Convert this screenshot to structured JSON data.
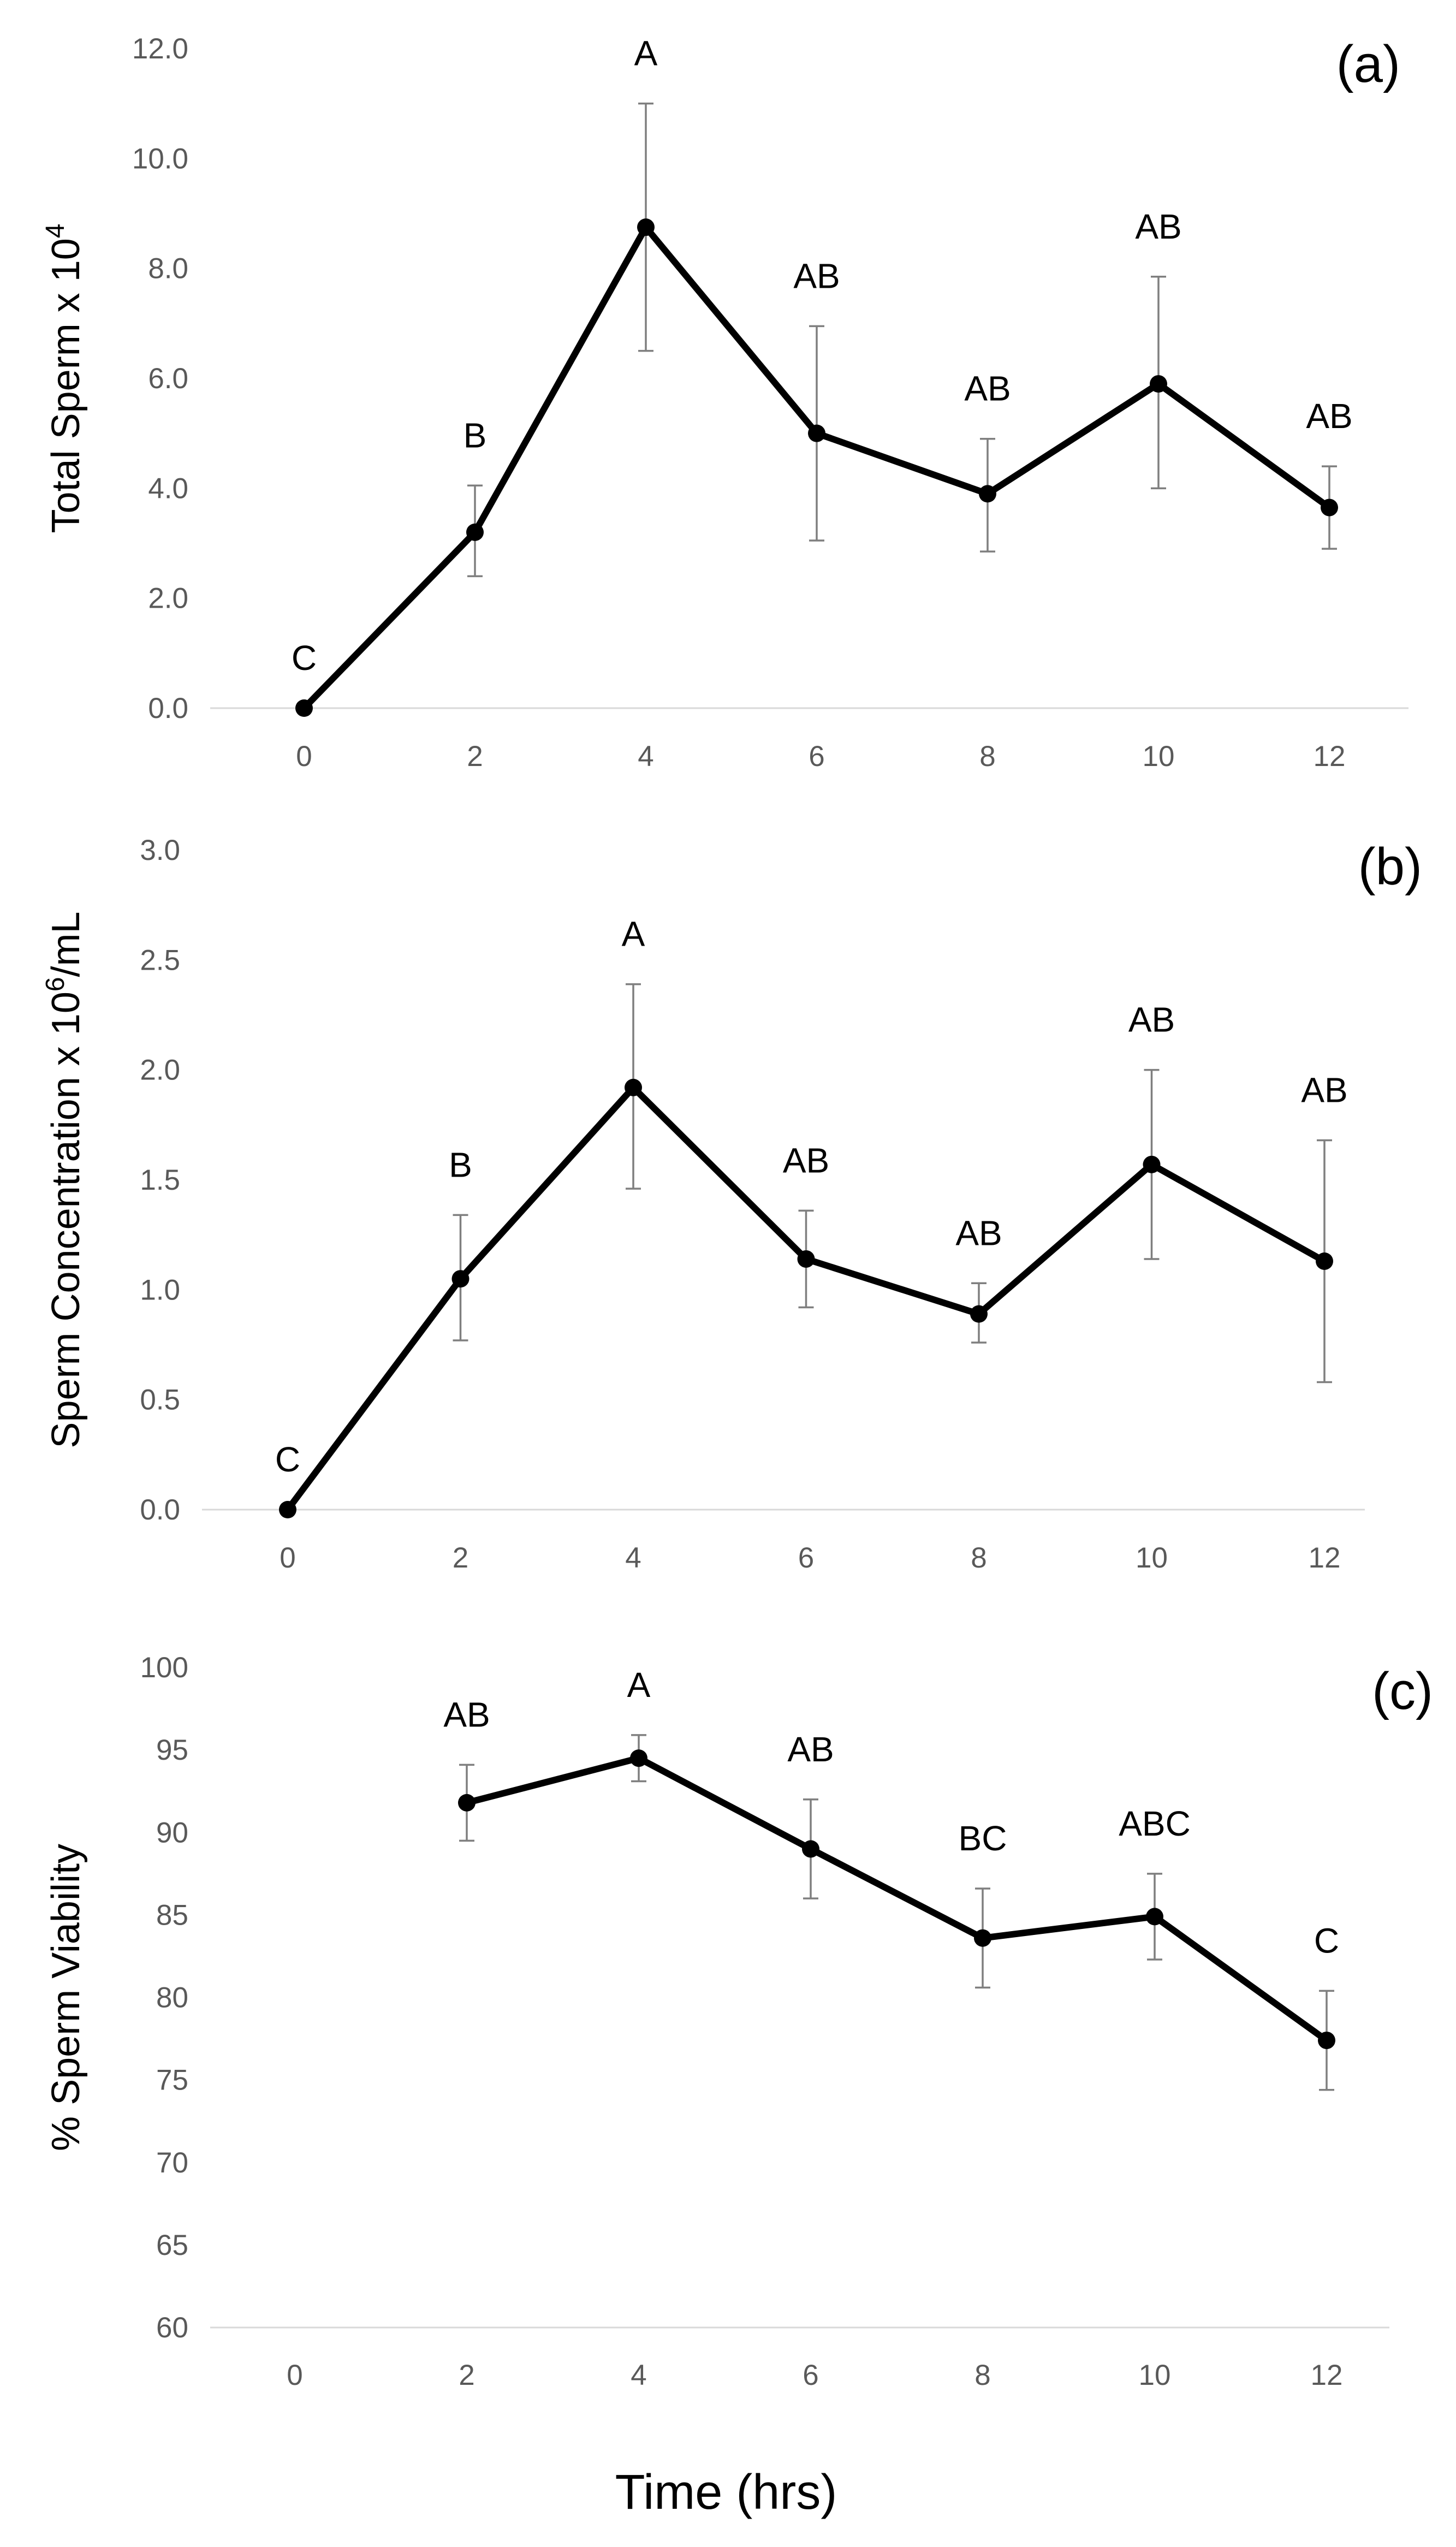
{
  "figure": {
    "xlabel": "Time (hrs)"
  },
  "chart_data": [
    {
      "type": "line",
      "panel_label": "(a)",
      "ylabel_main": "Total Sperm x 10",
      "ylabel_sup": "4",
      "ylim": [
        0,
        12
      ],
      "yticks": [
        "0.0",
        "2.0",
        "4.0",
        "6.0",
        "8.0",
        "10.0",
        "12.0"
      ],
      "x": [
        0,
        2,
        4,
        6,
        8,
        10,
        12
      ],
      "series": [
        {
          "name": "Total Sperm",
          "values": [
            0.0,
            3.2,
            8.75,
            5.0,
            3.9,
            5.9,
            3.65
          ],
          "error_low": [
            0,
            2.4,
            6.5,
            3.05,
            2.85,
            4.0,
            2.9
          ],
          "error_high": [
            0,
            4.05,
            11.0,
            6.95,
            4.9,
            7.85,
            4.4
          ],
          "letters": [
            "C",
            "B",
            "A",
            "AB",
            "AB",
            "AB",
            "AB"
          ]
        }
      ]
    },
    {
      "type": "line",
      "panel_label": "(b)",
      "ylabel_main": "Sperm Concentration x 10",
      "ylabel_sup": "6",
      "ylabel_tail": "/mL",
      "ylim": [
        0,
        3
      ],
      "yticks": [
        "0.0",
        "0.5",
        "1.0",
        "1.5",
        "2.0",
        "2.5",
        "3.0"
      ],
      "x": [
        0,
        2,
        4,
        6,
        8,
        10,
        12
      ],
      "series": [
        {
          "name": "Sperm Concentration",
          "values": [
            0.0,
            1.05,
            1.92,
            1.14,
            0.89,
            1.57,
            1.13
          ],
          "error_low": [
            0,
            0.77,
            1.46,
            0.92,
            0.76,
            1.14,
            0.58
          ],
          "error_high": [
            0,
            1.34,
            2.39,
            1.36,
            1.03,
            2.0,
            1.68
          ],
          "letters": [
            "C",
            "B",
            "A",
            "AB",
            "AB",
            "AB",
            "AB"
          ]
        }
      ]
    },
    {
      "type": "line",
      "panel_label": "(c)",
      "ylabel_main": "% Sperm Viability",
      "ylim": [
        60,
        100
      ],
      "yticks": [
        "60",
        "65",
        "70",
        "75",
        "80",
        "85",
        "90",
        "95",
        "100"
      ],
      "x": [
        0,
        2,
        4,
        6,
        8,
        10,
        12
      ],
      "series": [
        {
          "name": "% Sperm Viability",
          "values": [
            null,
            91.8,
            94.5,
            89.0,
            83.6,
            84.9,
            77.4
          ],
          "error_low": [
            null,
            89.5,
            93.1,
            86.0,
            80.6,
            82.3,
            74.4
          ],
          "error_high": [
            null,
            94.1,
            95.9,
            92.0,
            86.6,
            87.5,
            80.4
          ],
          "letters": [
            null,
            "AB",
            "A",
            "AB",
            "BC",
            "ABC",
            "C"
          ]
        }
      ]
    }
  ]
}
